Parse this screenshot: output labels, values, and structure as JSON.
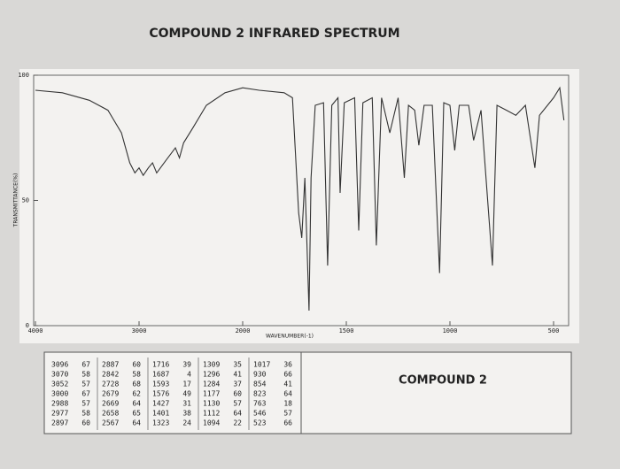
{
  "chart_data": {
    "type": "line",
    "title": "COMPOUND 2 INFRARED SPECTRUM",
    "x_label": "WAVENUMBER(-1)",
    "y_label": "TRANSMITTANCE(%)",
    "color": "#333333",
    "xlim": [
      4000,
      450
    ],
    "xticks": [
      4000,
      3000,
      2000,
      1500,
      1000,
      500
    ],
    "ylim": [
      0,
      100
    ],
    "yticks": [
      0,
      50,
      100
    ],
    "x": [
      4000,
      3740,
      3480,
      3300,
      3170,
      3090,
      3040,
      3000,
      2960,
      2910,
      2870,
      2830,
      2740,
      2650,
      2610,
      2570,
      2480,
      2350,
      2170,
      2000,
      1920,
      1800,
      1760,
      1730,
      1715,
      1700,
      1680,
      1670,
      1650,
      1610,
      1590,
      1570,
      1540,
      1530,
      1510,
      1460,
      1440,
      1420,
      1375,
      1355,
      1330,
      1290,
      1270,
      1250,
      1220,
      1200,
      1170,
      1150,
      1125,
      1085,
      1050,
      1030,
      1000,
      977,
      955,
      910,
      886,
      850,
      795,
      773,
      727,
      682,
      636,
      590,
      568,
      500,
      470,
      450
    ],
    "values": [
      94,
      93,
      90,
      86,
      77,
      65,
      61,
      63,
      60,
      63,
      65,
      61,
      66,
      71,
      67,
      73,
      79,
      88,
      93,
      95,
      94,
      93,
      91,
      45,
      35,
      59,
      6,
      59,
      88,
      89,
      24,
      88,
      91,
      53,
      89,
      91,
      38,
      89,
      91,
      32,
      91,
      77,
      84,
      91,
      59,
      88,
      86,
      72,
      88,
      88,
      21,
      89,
      88,
      70,
      88,
      88,
      74,
      86,
      24,
      88,
      86,
      84,
      88,
      63,
      84,
      91,
      95,
      82
    ]
  },
  "peak_table": {
    "columns": [
      [
        [
          3096,
          67
        ],
        [
          3070,
          58
        ],
        [
          3052,
          57
        ],
        [
          3000,
          67
        ],
        [
          2988,
          57
        ],
        [
          2977,
          58
        ],
        [
          2897,
          60
        ]
      ],
      [
        [
          2887,
          60
        ],
        [
          2842,
          58
        ],
        [
          2728,
          68
        ],
        [
          2679,
          62
        ],
        [
          2669,
          64
        ],
        [
          2658,
          65
        ],
        [
          2567,
          64
        ]
      ],
      [
        [
          1716,
          39
        ],
        [
          1687,
          4
        ],
        [
          1593,
          17
        ],
        [
          1576,
          49
        ],
        [
          1427,
          31
        ],
        [
          1401,
          38
        ],
        [
          1323,
          24
        ]
      ],
      [
        [
          1309,
          35
        ],
        [
          1296,
          41
        ],
        [
          1284,
          37
        ],
        [
          1177,
          60
        ],
        [
          1130,
          57
        ],
        [
          1112,
          64
        ],
        [
          1094,
          22
        ]
      ],
      [
        [
          1017,
          36
        ],
        [
          930,
          66
        ],
        [
          854,
          41
        ],
        [
          823,
          64
        ],
        [
          763,
          18
        ],
        [
          546,
          57
        ],
        [
          523,
          66
        ]
      ]
    ]
  },
  "label": "COMPOUND 2"
}
